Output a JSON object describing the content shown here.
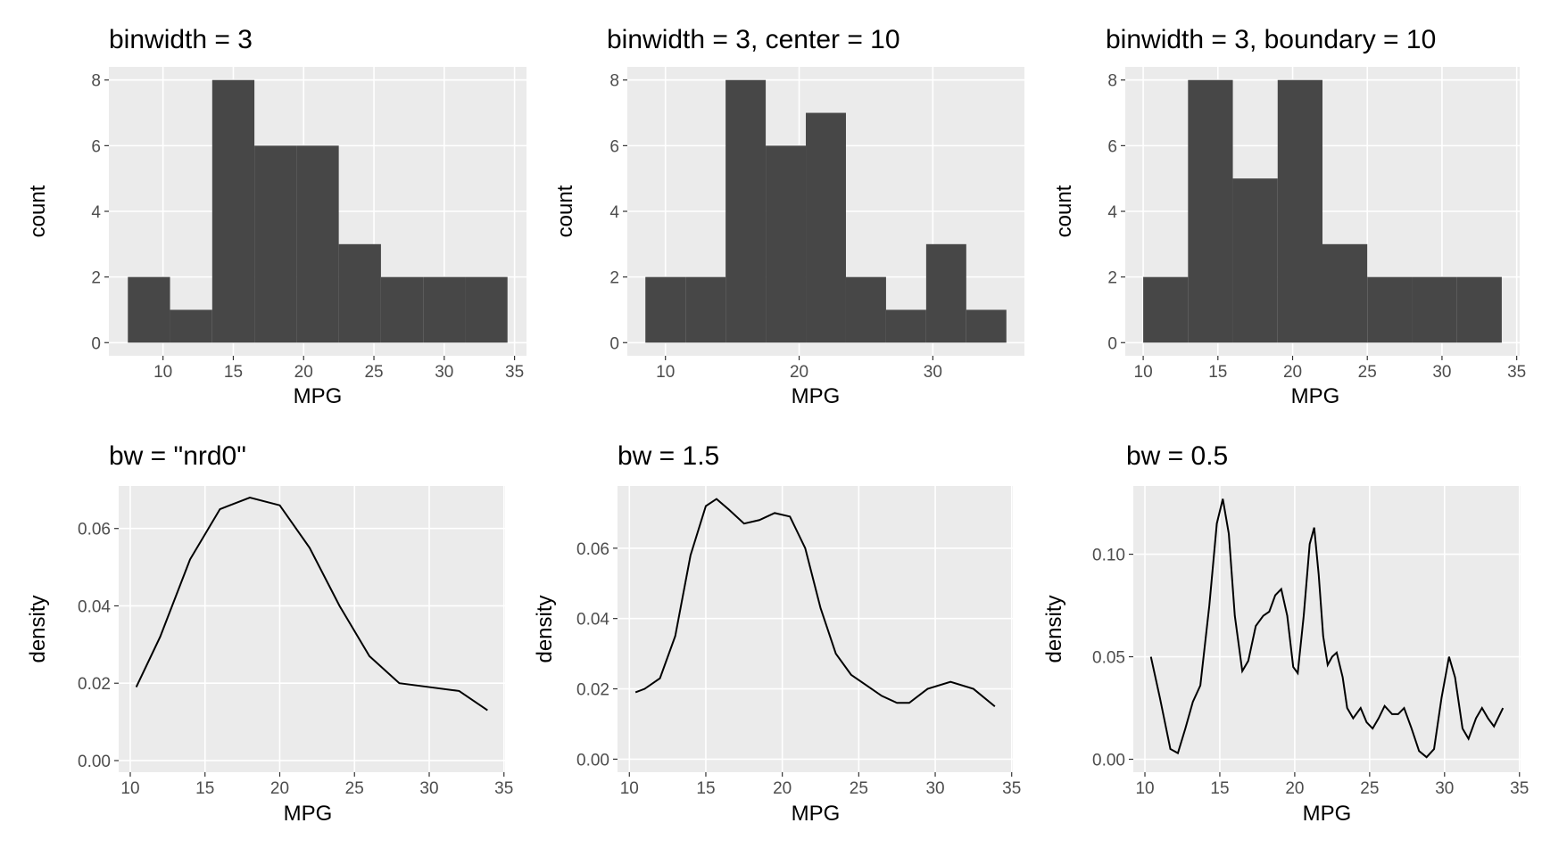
{
  "chart_data": [
    {
      "type": "histogram",
      "title": "binwidth = 3",
      "x_label": "MPG",
      "y_label": "count",
      "color": "#474747",
      "grid": true,
      "bins": [
        7.5,
        10.5,
        13.5,
        16.5,
        19.5,
        22.5,
        25.5,
        28.5,
        31.5,
        34.5
      ],
      "values": [
        2,
        1,
        8,
        6,
        6,
        3,
        2,
        2,
        2
      ],
      "xlim": [
        6.15,
        35.85
      ],
      "xticks": [
        10,
        15,
        20,
        25,
        30,
        35
      ],
      "ylim": [
        -0.4,
        8.4
      ],
      "yticks": [
        0,
        2,
        4,
        6,
        8
      ]
    },
    {
      "type": "histogram",
      "title": "binwidth = 3, center = 10",
      "x_label": "MPG",
      "y_label": "count",
      "color": "#474747",
      "grid": true,
      "bins": [
        8.5,
        11.5,
        14.5,
        17.5,
        20.5,
        23.5,
        26.5,
        29.5,
        32.5,
        35.5
      ],
      "values": [
        2,
        2,
        8,
        6,
        7,
        2,
        1,
        3,
        1
      ],
      "xlim": [
        7.15,
        36.85
      ],
      "xticks": [
        10,
        20,
        30
      ],
      "ylim": [
        -0.4,
        8.4
      ],
      "yticks": [
        0,
        2,
        4,
        6,
        8
      ]
    },
    {
      "type": "histogram",
      "title": "binwidth = 3, boundary = 10",
      "x_label": "MPG",
      "y_label": "count",
      "color": "#474747",
      "grid": true,
      "bins": [
        10,
        13,
        16,
        19,
        22,
        25,
        28,
        31,
        34
      ],
      "values": [
        2,
        8,
        5,
        8,
        3,
        2,
        2,
        2
      ],
      "xlim": [
        8.8,
        35.2
      ],
      "xticks": [
        10,
        15,
        20,
        25,
        30,
        35
      ],
      "ylim": [
        -0.4,
        8.4
      ],
      "yticks": [
        0,
        2,
        4,
        6,
        8
      ]
    },
    {
      "type": "line",
      "title": "bw = \"nrd0\"",
      "x_label": "MPG",
      "y_label": "density",
      "color": "#000000",
      "grid": true,
      "x": [
        10.4,
        12,
        14,
        16,
        18,
        20,
        22,
        24,
        26,
        28,
        30,
        32,
        33.9
      ],
      "values": [
        0.019,
        0.032,
        0.052,
        0.065,
        0.068,
        0.066,
        0.055,
        0.04,
        0.027,
        0.02,
        0.019,
        0.018,
        0.013
      ],
      "xlim": [
        9.225,
        35.075
      ],
      "xticks": [
        10,
        15,
        20,
        25,
        30,
        35
      ],
      "ylim": [
        -0.003,
        0.071
      ],
      "yticks": [
        {
          "value": 0,
          "label": "0.00"
        },
        0.02,
        0.04,
        0.06
      ]
    },
    {
      "type": "line",
      "title": "bw = 1.5",
      "x_label": "MPG",
      "y_label": "density",
      "color": "#000000",
      "grid": true,
      "x": [
        10.4,
        11,
        12,
        13,
        14,
        15,
        15.7,
        16.5,
        17.5,
        18.5,
        19.5,
        20.5,
        21.5,
        22.5,
        23.5,
        24.5,
        25.5,
        26.5,
        27.5,
        28.3,
        29.5,
        31,
        32.5,
        33.9
      ],
      "values": [
        0.019,
        0.02,
        0.023,
        0.035,
        0.058,
        0.072,
        0.074,
        0.071,
        0.067,
        0.068,
        0.07,
        0.069,
        0.06,
        0.043,
        0.03,
        0.024,
        0.021,
        0.018,
        0.016,
        0.016,
        0.02,
        0.022,
        0.02,
        0.015
      ],
      "xlim": [
        9.225,
        35.075
      ],
      "xticks": [
        10,
        15,
        20,
        25,
        30,
        35
      ],
      "ylim": [
        -0.0037,
        0.0777
      ],
      "yticks": [
        {
          "value": 0,
          "label": "0.00"
        },
        0.02,
        0.04,
        0.06
      ]
    },
    {
      "type": "line",
      "title": "bw = 0.5",
      "x_label": "MPG",
      "y_label": "density",
      "color": "#000000",
      "grid": true,
      "x": [
        10.4,
        11,
        11.7,
        12.2,
        12.7,
        13.2,
        13.7,
        14.3,
        14.8,
        15.2,
        15.6,
        16,
        16.5,
        16.9,
        17.4,
        17.9,
        18.3,
        18.7,
        19.1,
        19.5,
        19.9,
        20.2,
        20.6,
        21,
        21.3,
        21.6,
        21.9,
        22.2,
        22.5,
        22.8,
        23.2,
        23.5,
        23.9,
        24.4,
        24.8,
        25.2,
        25.6,
        26,
        26.5,
        26.9,
        27.3,
        27.8,
        28.3,
        28.8,
        29.3,
        29.8,
        30.3,
        30.7,
        31.2,
        31.6,
        32.1,
        32.5,
        32.9,
        33.3,
        33.9
      ],
      "values": [
        0.05,
        0.03,
        0.005,
        0.003,
        0.015,
        0.028,
        0.036,
        0.075,
        0.115,
        0.127,
        0.11,
        0.07,
        0.043,
        0.048,
        0.065,
        0.07,
        0.072,
        0.08,
        0.083,
        0.07,
        0.045,
        0.042,
        0.07,
        0.105,
        0.113,
        0.09,
        0.06,
        0.046,
        0.05,
        0.052,
        0.04,
        0.025,
        0.02,
        0.025,
        0.018,
        0.015,
        0.02,
        0.026,
        0.022,
        0.022,
        0.025,
        0.015,
        0.004,
        0.001,
        0.005,
        0.03,
        0.05,
        0.04,
        0.015,
        0.01,
        0.02,
        0.025,
        0.02,
        0.016,
        0.025
      ],
      "xlim": [
        9.225,
        35.075
      ],
      "xticks": [
        10,
        15,
        20,
        25,
        30,
        35
      ],
      "ylim": [
        -0.0063,
        0.1333
      ],
      "yticks": [
        {
          "value": 0,
          "label": "0.00"
        },
        0.05,
        {
          "value": 0.1,
          "label": "0.10"
        }
      ]
    }
  ]
}
